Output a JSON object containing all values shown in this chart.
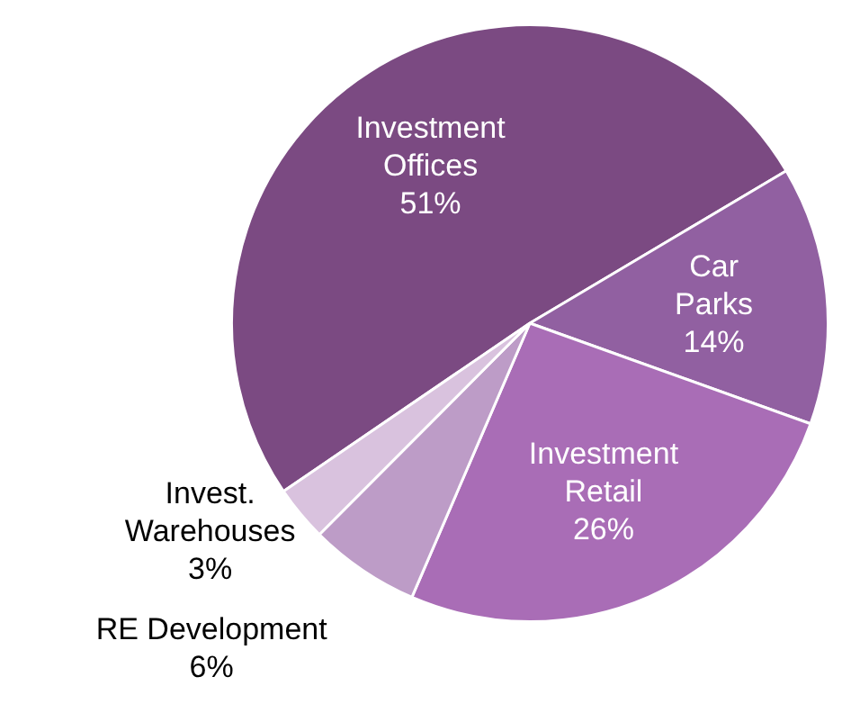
{
  "chart_data": {
    "type": "pie",
    "categories": [
      "Investment Offices",
      "Car Parks",
      "Investment Retail",
      "RE Development",
      "Invest. Warehouses"
    ],
    "values": [
      51,
      14,
      26,
      6,
      3
    ],
    "colors": [
      "#7b4a82",
      "#9160a1",
      "#a96db6",
      "#bd9cc7",
      "#d9c2de"
    ],
    "value_labels": [
      "51%",
      "14%",
      "26%",
      "6%",
      "3%"
    ],
    "legend": false
  }
}
